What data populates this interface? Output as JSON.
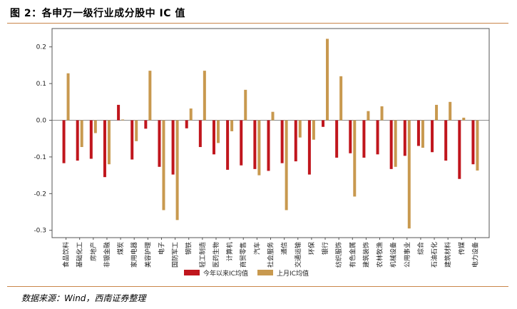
{
  "figure": {
    "title": "图 2：各申万一级行业成分股中 IC 值",
    "source": "数据来源：Wind，西南证券整理"
  },
  "colors": {
    "series1": "#c0161d",
    "series2": "#c8994f",
    "rule": "#c9864a",
    "axis": "#555555"
  },
  "chart_data": {
    "type": "bar",
    "title": "",
    "xlabel": "",
    "ylabel": "",
    "ylim": [
      -0.32,
      0.25
    ],
    "yticks": [
      -0.3,
      -0.2,
      -0.1,
      0.0,
      0.1,
      0.2
    ],
    "ytick_labels": [
      "-0.3",
      "-0.2",
      "-0.1",
      "0.0",
      "0.1",
      "0.2"
    ],
    "grid": false,
    "legend_position": "bottom-center",
    "categories": [
      "食品饮料",
      "基础化工",
      "房地产",
      "非银金融",
      "煤炭",
      "家用电器",
      "美容护理",
      "电子",
      "国防军工",
      "钢铁",
      "轻工制造",
      "医药生物",
      "计算机",
      "商贸零售",
      "汽车",
      "社会服务",
      "通信",
      "交通运输",
      "环保",
      "银行",
      "纺织服饰",
      "有色金属",
      "建筑装饰",
      "农林牧渔",
      "机械设备",
      "公用事业",
      "综合",
      "石油石化",
      "建筑材料",
      "传媒",
      "电力设备"
    ],
    "series": [
      {
        "name": "今年以来IC均值",
        "color": "#c0161d",
        "values": [
          -0.117,
          -0.11,
          -0.105,
          -0.155,
          0.042,
          -0.107,
          -0.023,
          -0.127,
          -0.148,
          -0.022,
          -0.073,
          -0.093,
          -0.135,
          -0.123,
          -0.133,
          -0.138,
          -0.117,
          -0.112,
          -0.148,
          -0.018,
          -0.102,
          -0.09,
          -0.102,
          -0.093,
          -0.133,
          -0.097,
          -0.07,
          -0.087,
          -0.11,
          -0.16,
          -0.12
        ]
      },
      {
        "name": "上月IC均值",
        "color": "#c8994f",
        "values": [
          0.128,
          -0.073,
          -0.035,
          -0.12,
          0.002,
          -0.057,
          0.135,
          -0.245,
          -0.272,
          0.032,
          0.135,
          -0.062,
          -0.03,
          0.083,
          -0.15,
          0.023,
          -0.245,
          -0.047,
          -0.053,
          0.222,
          0.12,
          -0.208,
          0.025,
          0.038,
          -0.127,
          -0.295,
          -0.075,
          0.042,
          0.05,
          0.007,
          -0.137
        ]
      }
    ]
  }
}
